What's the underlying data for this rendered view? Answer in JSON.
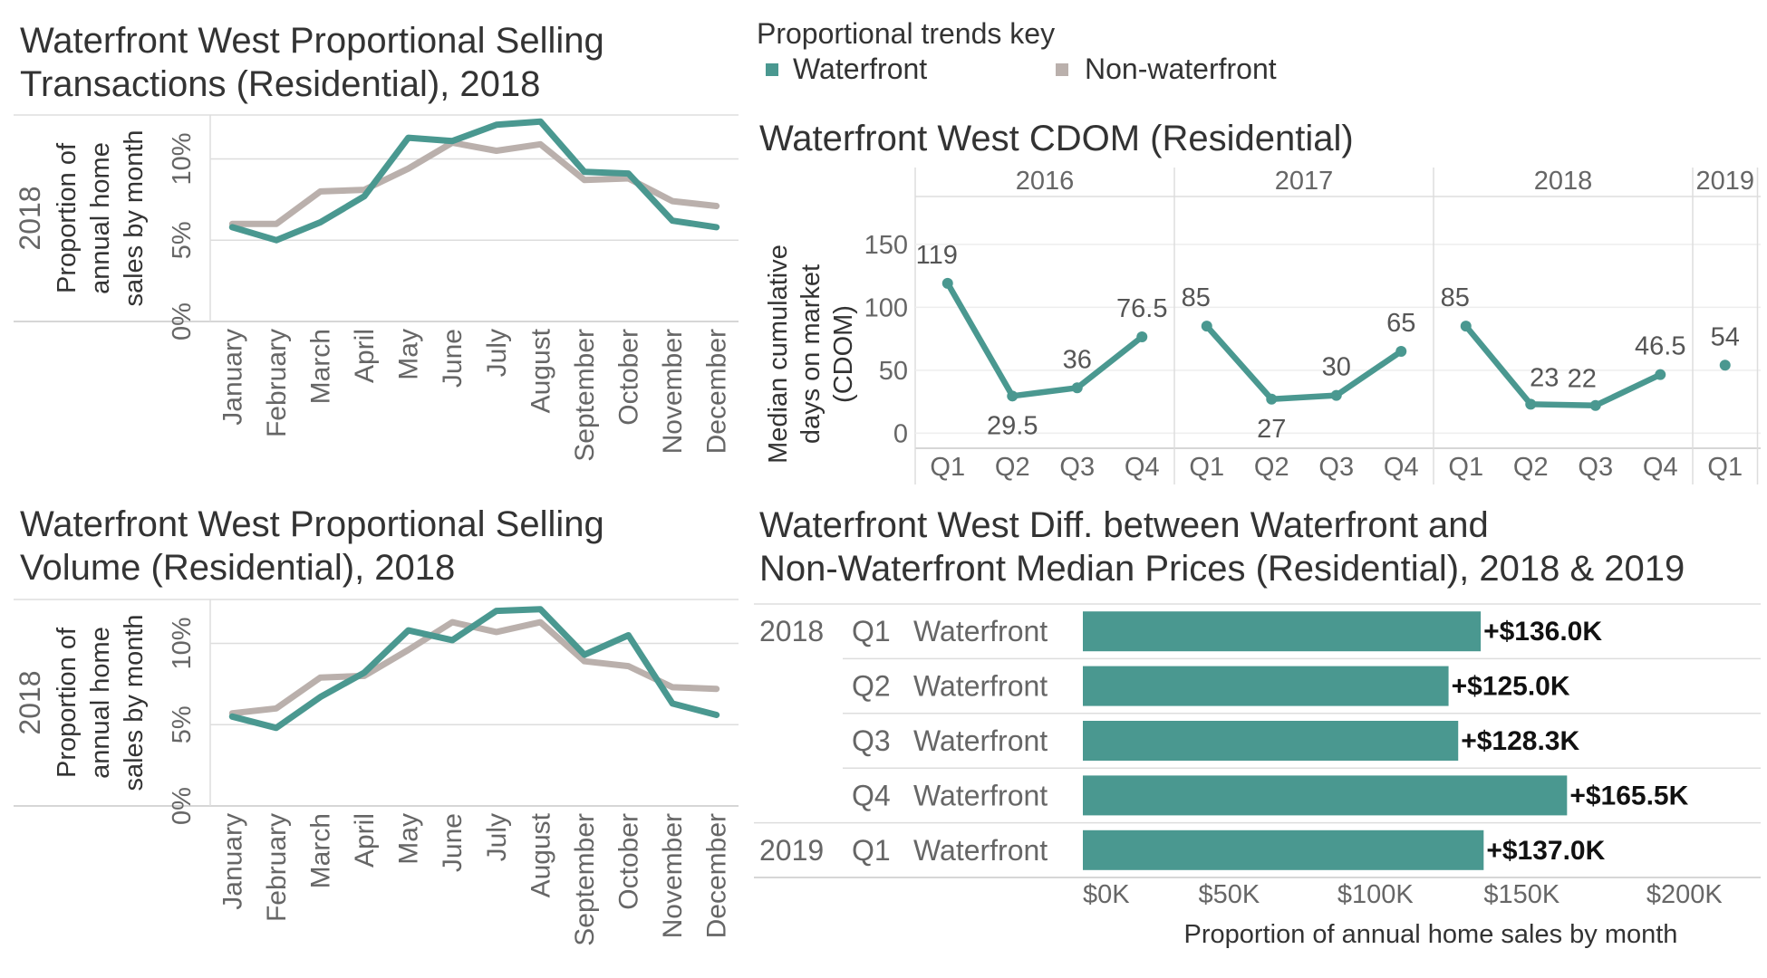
{
  "colors": {
    "waterfront": "#4a9890",
    "non_waterfront": "#bab0ac",
    "grid": "#dddddd",
    "axis": "#c8c8c8",
    "text": "#333333",
    "muted": "#666666"
  },
  "legend": {
    "title": "Proportional trends key",
    "items": [
      {
        "label": "Waterfront",
        "color": "#4a9890"
      },
      {
        "label": "Non-waterfront",
        "color": "#bab0ac"
      }
    ]
  },
  "chart_data": [
    {
      "id": "transactions",
      "type": "line",
      "title_lines": [
        "Waterfront West Proportional Selling",
        "Transactions (Residential), 2018"
      ],
      "row_label": "2018",
      "ylabel_lines": [
        "Proportion of",
        "annual home",
        "sales by month"
      ],
      "yticks": [
        "0%",
        "5%",
        "10%"
      ],
      "ytick_values": [
        0,
        5,
        10
      ],
      "ylim": [
        0,
        12.7
      ],
      "categories": [
        "January",
        "February",
        "March",
        "April",
        "May",
        "June",
        "July",
        "August",
        "September",
        "October",
        "November",
        "December"
      ],
      "series": [
        {
          "name": "Non-waterfront",
          "color": "#bab0ac",
          "values": [
            6.0,
            6.0,
            8.0,
            8.1,
            9.4,
            11.0,
            10.5,
            10.9,
            8.7,
            8.8,
            7.4,
            7.1
          ]
        },
        {
          "name": "Waterfront",
          "color": "#4a9890",
          "values": [
            5.8,
            5.0,
            6.1,
            7.7,
            11.3,
            11.1,
            12.1,
            12.3,
            9.2,
            9.1,
            6.2,
            5.8
          ]
        }
      ]
    },
    {
      "id": "volume",
      "type": "line",
      "title_lines": [
        "Waterfront West Proportional Selling",
        "Volume (Residential), 2018"
      ],
      "row_label": "2018",
      "ylabel_lines": [
        "Proportion of",
        "annual home",
        "sales by month"
      ],
      "yticks": [
        "0%",
        "5%",
        "10%"
      ],
      "ytick_values": [
        0,
        5,
        10
      ],
      "ylim": [
        0,
        12.7
      ],
      "categories": [
        "January",
        "February",
        "March",
        "April",
        "May",
        "June",
        "July",
        "August",
        "September",
        "October",
        "November",
        "December"
      ],
      "series": [
        {
          "name": "Non-waterfront",
          "color": "#bab0ac",
          "values": [
            5.7,
            6.0,
            7.9,
            8.0,
            9.6,
            11.3,
            10.7,
            11.3,
            8.9,
            8.6,
            7.3,
            7.2
          ]
        },
        {
          "name": "Waterfront",
          "color": "#4a9890",
          "values": [
            5.5,
            4.8,
            6.7,
            8.2,
            10.8,
            10.2,
            12.0,
            12.1,
            9.3,
            10.5,
            6.3,
            5.6
          ]
        }
      ]
    },
    {
      "id": "cdom",
      "type": "line",
      "title": "Waterfront West CDOM (Residential)",
      "ylabel_lines": [
        "Median cumulative",
        "days on market",
        "(CDOM)"
      ],
      "yticks": [
        "0",
        "50",
        "100",
        "150"
      ],
      "ytick_values": [
        0,
        50,
        100,
        150
      ],
      "ylim": [
        -12,
        188
      ],
      "years": [
        {
          "year": "2016",
          "quarters": [
            "Q1",
            "Q2",
            "Q3",
            "Q4"
          ],
          "values": [
            119,
            29.5,
            36,
            76.5
          ],
          "labels": [
            "119",
            "29.5",
            "36",
            "76.5"
          ]
        },
        {
          "year": "2017",
          "quarters": [
            "Q1",
            "Q2",
            "Q3",
            "Q4"
          ],
          "values": [
            85,
            27,
            30,
            65
          ],
          "labels": [
            "85",
            "27",
            "30",
            "65"
          ]
        },
        {
          "year": "2018",
          "quarters": [
            "Q1",
            "Q2",
            "Q3",
            "Q4"
          ],
          "values": [
            85,
            23,
            22,
            46.5
          ],
          "labels": [
            "85",
            "23",
            "22",
            "46.5"
          ]
        },
        {
          "year": "2019",
          "quarters": [
            "Q1"
          ],
          "values": [
            54
          ],
          "labels": [
            "54"
          ]
        }
      ]
    },
    {
      "id": "price-diff",
      "type": "bar",
      "title_lines": [
        "Waterfront West Diff. between Waterfront and",
        "Non-Waterfront Median Prices (Residential), 2018 & 2019"
      ],
      "xlabel": "Proportion of annual home sales by month",
      "xticks": [
        "$0K",
        "$50K",
        "$100K",
        "$150K",
        "$200K"
      ],
      "xtick_values": [
        0,
        50,
        100,
        150,
        200
      ],
      "xlim": [
        0,
        210
      ],
      "rows": [
        {
          "year": "2018",
          "quarter": "Q1",
          "group": "Waterfront",
          "value": 136.0,
          "label": "+$136.0K"
        },
        {
          "year": "",
          "quarter": "Q2",
          "group": "Waterfront",
          "value": 125.0,
          "label": "+$125.0K"
        },
        {
          "year": "",
          "quarter": "Q3",
          "group": "Waterfront",
          "value": 128.3,
          "label": "+$128.3K"
        },
        {
          "year": "",
          "quarter": "Q4",
          "group": "Waterfront",
          "value": 165.5,
          "label": "+$165.5K"
        },
        {
          "year": "2019",
          "quarter": "Q1",
          "group": "Waterfront",
          "value": 137.0,
          "label": "+$137.0K"
        }
      ]
    }
  ]
}
